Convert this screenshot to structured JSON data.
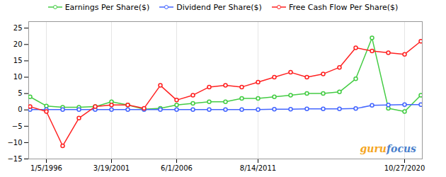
{
  "chart_data": {
    "type": "line",
    "categories": [
      null,
      "1/5/1996",
      null,
      null,
      null,
      "3/19/2001",
      null,
      null,
      null,
      "6/1/2006",
      null,
      null,
      null,
      null,
      "8/14/2011",
      null,
      null,
      null,
      null,
      null,
      null,
      null,
      null,
      "10/27/2020",
      null
    ],
    "series": [
      {
        "name": "Earnings Per Share($)",
        "color": "#44cc44",
        "values": [
          4.0,
          1.2,
          0.8,
          0.8,
          1.0,
          2.5,
          1.5,
          0.2,
          0.5,
          1.5,
          2.0,
          2.5,
          2.5,
          3.5,
          3.5,
          4.0,
          4.5,
          5.0,
          5.0,
          5.5,
          9.5,
          22.0,
          0.5,
          -0.5,
          4.5
        ]
      },
      {
        "name": "Dividend Per Share($)",
        "color": "#4466ff",
        "values": [
          0.1,
          0.1,
          0.1,
          0.1,
          0.1,
          0.1,
          0.1,
          0.1,
          0.1,
          0.1,
          0.1,
          0.1,
          0.1,
          0.1,
          0.1,
          0.2,
          0.2,
          0.3,
          0.3,
          0.3,
          0.4,
          1.4,
          1.5,
          1.6,
          1.6
        ]
      },
      {
        "name": "Free Cash Flow Per Share($)",
        "color": "#ff2222",
        "values": [
          1.0,
          -0.5,
          -11.0,
          -2.5,
          1.0,
          1.5,
          1.5,
          0.5,
          7.5,
          3.0,
          4.5,
          7.0,
          7.5,
          7.0,
          8.5,
          10.0,
          11.5,
          10.0,
          11.0,
          13.0,
          19.0,
          18.0,
          17.5,
          17.0,
          21.0
        ]
      }
    ],
    "ylim": [
      -15,
      27
    ],
    "yticks": [
      -15,
      -10,
      -5,
      0,
      5,
      10,
      15,
      20,
      25
    ],
    "grid": true,
    "legend": "top",
    "marker": "circle",
    "annotations": [
      {
        "text": "guru",
        "color": "#f5a623"
      },
      {
        "text": "focus",
        "color": "#4a7fcc"
      }
    ]
  }
}
